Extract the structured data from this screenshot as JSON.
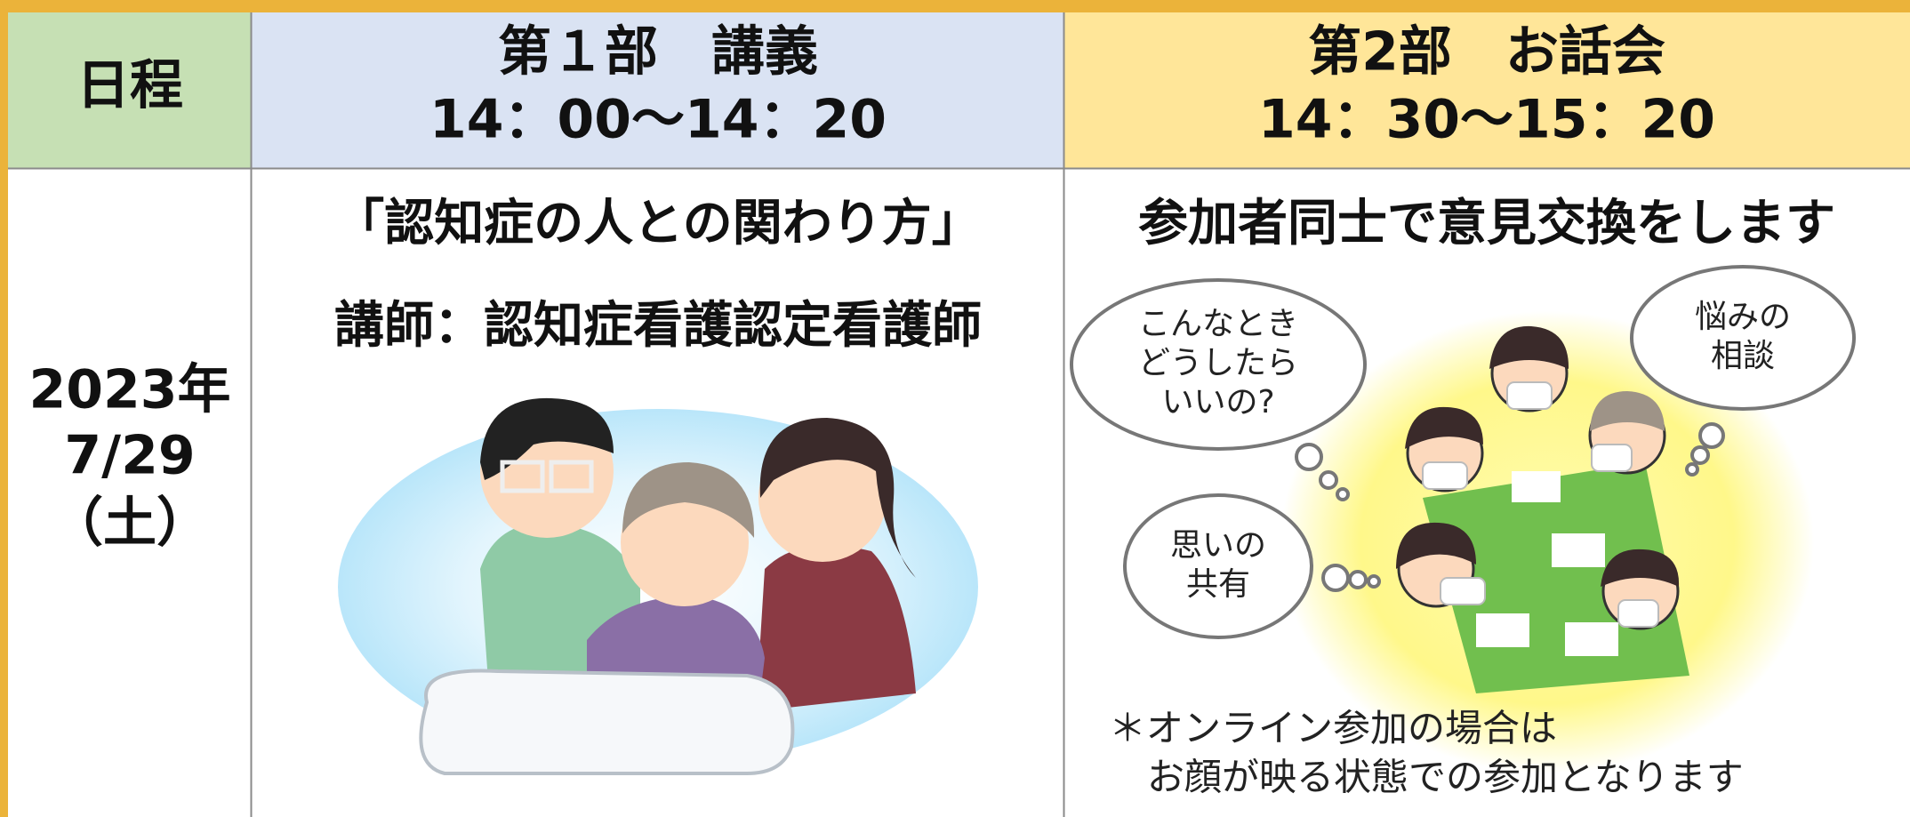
{
  "table": {
    "header": [
      "日程",
      {
        "title": "第１部　講義",
        "time": "14：00～14：20"
      },
      {
        "title": "第2部　お話会",
        "time": "14：30～15：20"
      }
    ],
    "row": {
      "date": [
        "2023年",
        "7/29",
        "（土）"
      ],
      "lecture": {
        "title": "「認知症の人との関わり方」",
        "speaker": "講師：認知症看護認定看護師"
      },
      "discussion": {
        "title": "参加者同士で意見交換をします",
        "bubbles": [
          [
            "こんなとき",
            "どうしたら",
            "いいの?"
          ],
          [
            "悩みの",
            "相談"
          ],
          [
            "思いの",
            "共有"
          ]
        ],
        "note": [
          "＊オンライン参加の場合は",
          "お顔が映る状態での参加となります"
        ]
      }
    }
  }
}
